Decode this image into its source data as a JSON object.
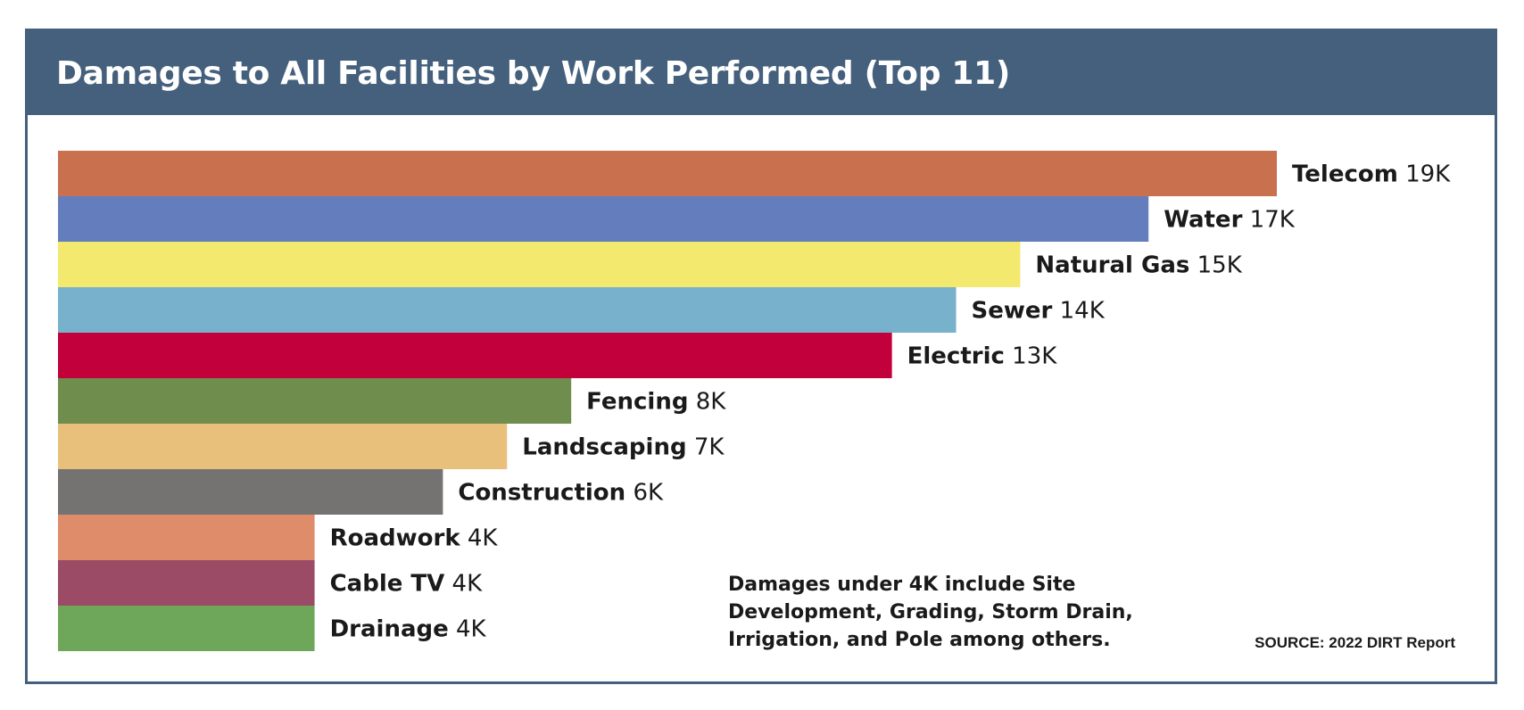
{
  "chart_data": {
    "type": "bar",
    "orientation": "horizontal",
    "title": "Damages to All Facilities by Work Performed (Top 11)",
    "categories": [
      "Telecom",
      "Water",
      "Natural Gas",
      "Sewer",
      "Electric",
      "Fencing",
      "Landscaping",
      "Construction",
      "Roadwork",
      "Cable TV",
      "Drainage"
    ],
    "values": [
      19,
      17,
      15,
      14,
      13,
      8,
      7,
      6,
      4,
      4,
      4
    ],
    "value_labels": [
      "19K",
      "17K",
      "15K",
      "14K",
      "13K",
      "8K",
      "7K",
      "6K",
      "4K",
      "4K",
      "4K"
    ],
    "colors": [
      "#c9704e",
      "#647dbc",
      "#f3e96e",
      "#78b1cc",
      "#c1003c",
      "#6f8d4d",
      "#e8c07c",
      "#757272",
      "#df8c6a",
      "#9b4b65",
      "#6ea65a"
    ],
    "grid": false,
    "legend": "none"
  },
  "note": "Damages under 4K include Site Development, Grading, Storm Drain, Irrigation, and Pole among others.",
  "source": "SOURCE: 2022 DIRT Report"
}
